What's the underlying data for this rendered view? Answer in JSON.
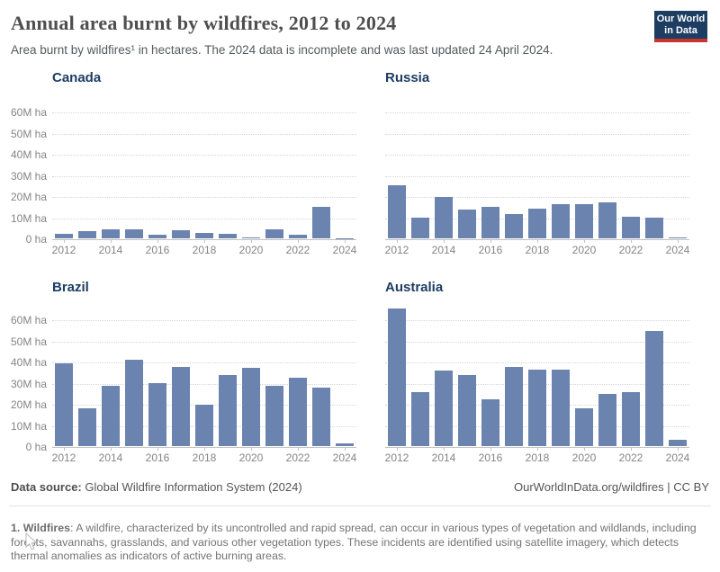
{
  "header": {
    "title": "Annual area burnt by wildfires, 2012 to 2024",
    "subtitle": "Area burnt by wildfires¹ in hectares. The 2024 data is incomplete and was last updated 24 April 2024.",
    "logo": {
      "line1": "Our World",
      "line2": "in Data",
      "bg_color": "#1d3d63",
      "stripe_color": "#c7352f"
    }
  },
  "axis": {
    "yticks": [
      "0 ha",
      "10M ha",
      "20M ha",
      "30M ha",
      "40M ha",
      "50M ha",
      "60M ha"
    ],
    "xticks": [
      "2012",
      "2014",
      "2016",
      "2018",
      "2020",
      "2022",
      "2024"
    ]
  },
  "chart_data": [
    {
      "type": "bar",
      "title": "Canada",
      "unit": "M ha",
      "ylim": [
        0,
        60
      ],
      "grid": "horizontal-dotted",
      "bar_color": "#6b83af",
      "x": [
        2012,
        2013,
        2014,
        2015,
        2016,
        2017,
        2018,
        2019,
        2020,
        2021,
        2022,
        2023,
        2024
      ],
      "values": [
        2.1,
        3.6,
        4.4,
        4.1,
        1.6,
        3.9,
        2.7,
        2.1,
        0.6,
        4.3,
        1.6,
        15.0,
        0.1
      ]
    },
    {
      "type": "bar",
      "title": "Russia",
      "unit": "M ha",
      "ylim": [
        0,
        60
      ],
      "grid": "horizontal-dotted",
      "bar_color": "#6b83af",
      "x": [
        2012,
        2013,
        2014,
        2015,
        2016,
        2017,
        2018,
        2019,
        2020,
        2021,
        2022,
        2023,
        2024
      ],
      "values": [
        25.1,
        9.9,
        19.8,
        13.7,
        15.1,
        11.4,
        14.0,
        16.1,
        16.4,
        17.1,
        10.1,
        9.9,
        0.6
      ]
    },
    {
      "type": "bar",
      "title": "Brazil",
      "unit": "M ha",
      "ylim": [
        0,
        60
      ],
      "grid": "horizontal-dotted",
      "bar_color": "#6b83af",
      "x": [
        2012,
        2013,
        2014,
        2015,
        2016,
        2017,
        2018,
        2019,
        2020,
        2021,
        2022,
        2023,
        2024
      ],
      "values": [
        39.0,
        17.8,
        28.4,
        41.0,
        30.0,
        37.3,
        19.7,
        33.6,
        37.0,
        28.7,
        32.2,
        27.6,
        1.4
      ]
    },
    {
      "type": "bar",
      "title": "Australia",
      "unit": "M ha",
      "ylim": [
        0,
        60
      ],
      "grid": "horizontal-dotted",
      "bar_color": "#6b83af",
      "x": [
        2012,
        2013,
        2014,
        2015,
        2016,
        2017,
        2018,
        2019,
        2020,
        2021,
        2022,
        2023,
        2024
      ],
      "values": [
        65.3,
        25.6,
        35.7,
        33.7,
        22.2,
        37.6,
        36.4,
        36.1,
        18.0,
        24.5,
        25.7,
        54.5,
        3.2
      ]
    }
  ],
  "footer": {
    "source_label": "Data source:",
    "source_value": " Global Wildfire Information System (2024)",
    "attribution": "OurWorldInData.org/wildfires | CC BY"
  },
  "footnote": {
    "label": "1. Wildfires",
    "text": ": A wildfire, characterized by its uncontrolled and rapid spread, can occur in various types of vegetation and wildlands, including forests, savannahs, grasslands, and various other vegetation types. These incidents are identified using satellite imagery, which detects thermal anomalies as indicators of active burning areas."
  },
  "colors": {
    "bar": "#6b83af",
    "heading": "#1d3d63",
    "title_text": "#4e4e4e",
    "axis_text": "#858585"
  }
}
